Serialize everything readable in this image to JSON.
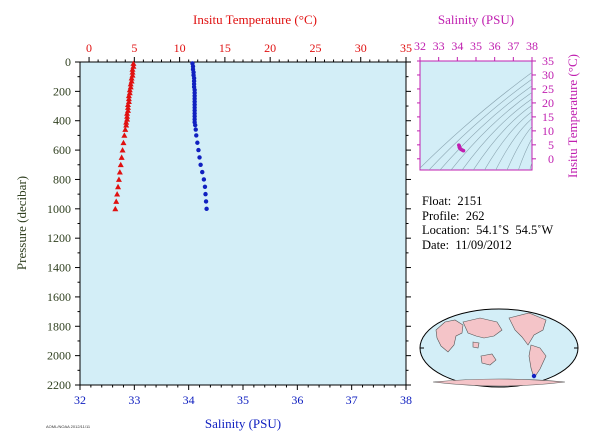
{
  "chart_data": [
    {
      "type": "scatter",
      "top_axis_label": "Insitu Temperature (°C)",
      "bottom_axis_label": "Salinity (PSU)",
      "ylabel": "Pressure (decibar)",
      "temp_ticks": [
        "0",
        "5",
        "10",
        "15",
        "20",
        "25",
        "30",
        "35"
      ],
      "temp_range": [
        -1,
        35
      ],
      "sal_ticks": [
        "32",
        "33",
        "34",
        "35",
        "36",
        "37",
        "38"
      ],
      "sal_range": [
        32,
        38
      ],
      "pressure_ticks": [
        "0",
        "200",
        "400",
        "600",
        "800",
        "1000",
        "1200",
        "1400",
        "1600",
        "1800",
        "2000",
        "2200"
      ],
      "pressure_range": [
        0,
        2200
      ],
      "series": [
        {
          "marker": "triangle",
          "color": "#e01010",
          "axis": "temperature",
          "x": [
            4.9,
            4.9,
            4.8,
            4.8,
            4.8,
            4.7,
            4.7,
            4.6,
            4.6,
            4.5,
            4.5,
            4.4,
            4.4,
            4.4,
            4.3,
            4.3,
            4.3,
            4.2,
            4.2,
            4.2,
            4.1,
            4.1,
            4.0,
            3.9,
            3.8,
            3.7,
            3.6,
            3.5,
            3.4,
            3.3,
            3.2,
            3.1,
            3.0,
            2.9
          ],
          "y": [
            10,
            30,
            50,
            70,
            90,
            110,
            130,
            150,
            170,
            190,
            210,
            230,
            250,
            270,
            290,
            310,
            330,
            350,
            370,
            390,
            410,
            430,
            460,
            500,
            550,
            600,
            650,
            700,
            750,
            800,
            850,
            900,
            950,
            1000
          ]
        },
        {
          "marker": "circle",
          "color": "#1020c0",
          "axis": "salinity",
          "x": [
            34.07,
            34.08,
            34.08,
            34.09,
            34.09,
            34.1,
            34.1,
            34.1,
            34.1,
            34.11,
            34.11,
            34.11,
            34.11,
            34.11,
            34.11,
            34.11,
            34.11,
            34.11,
            34.11,
            34.11,
            34.11,
            34.12,
            34.13,
            34.14,
            34.16,
            34.18,
            34.2,
            34.22,
            34.25,
            34.28,
            34.3,
            34.31,
            34.32,
            34.33
          ],
          "y": [
            10,
            30,
            50,
            70,
            90,
            110,
            130,
            150,
            170,
            190,
            210,
            230,
            250,
            270,
            290,
            310,
            330,
            350,
            370,
            390,
            410,
            430,
            460,
            500,
            550,
            600,
            650,
            700,
            750,
            800,
            850,
            900,
            950,
            1000
          ]
        }
      ]
    },
    {
      "type": "scatter",
      "top_axis_label": "Salinity (PSU)",
      "right_axis_label": "Insitu Temperature (°C)",
      "sal_ticks": [
        "32",
        "33",
        "34",
        "35",
        "36",
        "37",
        "38"
      ],
      "sal_range": [
        32,
        38
      ],
      "temp_ticks": [
        "35",
        "30",
        "25",
        "20",
        "15",
        "10",
        "5",
        "0"
      ],
      "temp_range": [
        -4,
        35
      ],
      "points_salinity": [
        34.08,
        34.1,
        34.11,
        34.11,
        34.12,
        34.15,
        34.2,
        34.27,
        34.33
      ],
      "points_temperature": [
        4.9,
        4.6,
        4.4,
        4.2,
        4.0,
        3.7,
        3.4,
        3.1,
        2.9
      ]
    }
  ],
  "float_info": {
    "float": "Float:  2151",
    "profile": "Profile:  262",
    "location": "Location:  54.1˚S  54.5˚W",
    "date": "Date:  11/09/2012"
  },
  "footer_text": "AOML/NOAA 2012/11/11",
  "colors": {
    "plot_bg": "#d3eef7",
    "temperature": "#e01010",
    "salinity": "#1020c0",
    "inset_accent": "#c020b0",
    "pressure_label": "#304020",
    "land": "#f4c4c8",
    "ocean": "#d3eef7"
  }
}
